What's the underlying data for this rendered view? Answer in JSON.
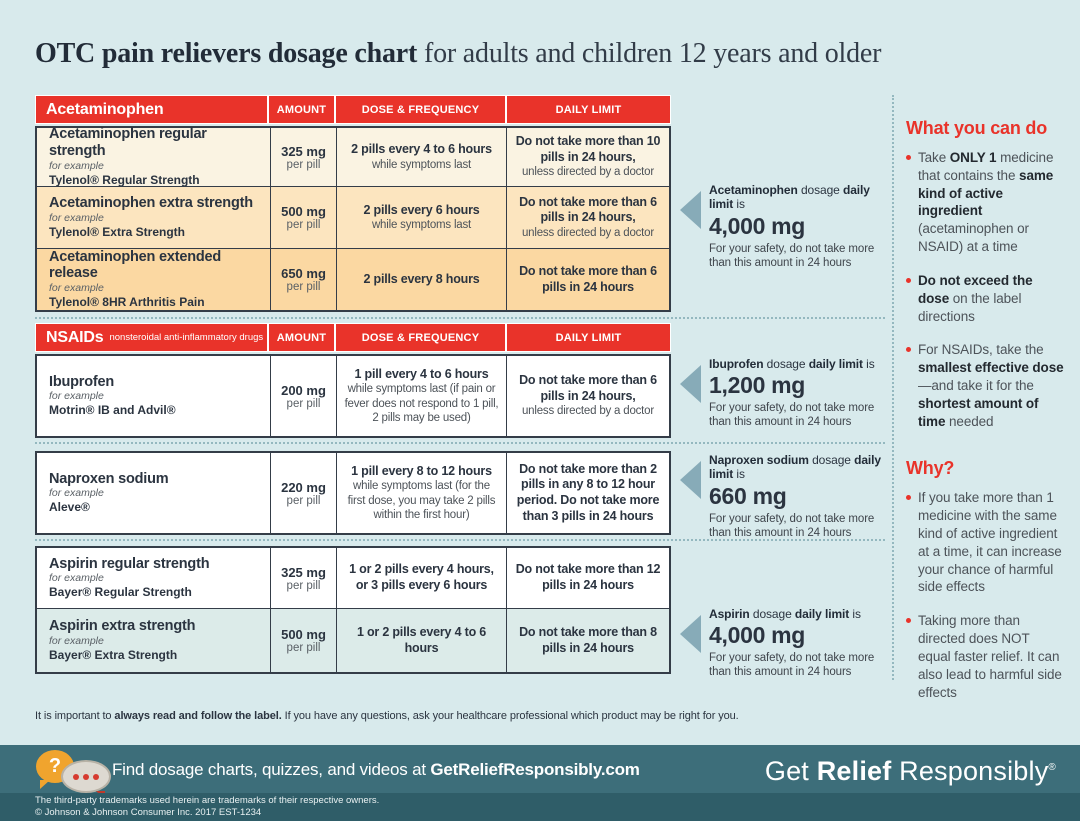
{
  "title": {
    "bold": "OTC pain relievers dosage chart",
    "rest": " for adults and children 12 years and older"
  },
  "columns": {
    "amount": "AMOUNT",
    "dose": "DOSE & FREQUENCY",
    "limit": "DAILY LIMIT"
  },
  "sections": {
    "acetaminophen": {
      "header": "Acetaminophen",
      "rows": [
        {
          "name": "Acetaminophen regular strength",
          "example_label": "for example",
          "example": "Tylenol® Regular Strength",
          "amount": "325 mg",
          "amount_unit": "per pill",
          "dose_bold": "2 pills every 4 to 6 hours",
          "dose_rest": "while symptoms last",
          "limit_bold": "Do not take more than 10 pills in 24 hours,",
          "limit_rest": "unless directed by a doctor"
        },
        {
          "name": "Acetaminophen extra strength",
          "example_label": "for example",
          "example": "Tylenol® Extra Strength",
          "amount": "500 mg",
          "amount_unit": "per pill",
          "dose_bold": "2 pills every 6 hours",
          "dose_rest": "while symptoms last",
          "limit_bold": "Do not take more than 6 pills in 24 hours,",
          "limit_rest": "unless directed by a doctor"
        },
        {
          "name": "Acetaminophen extended release",
          "example_label": "for example",
          "example": "Tylenol® 8HR Arthritis Pain",
          "amount": "650 mg",
          "amount_unit": "per pill",
          "dose_bold": "2 pills every 8 hours",
          "dose_rest": "",
          "limit_bold": "Do not take more than 6 pills in 24 hours",
          "limit_rest": ""
        }
      ]
    },
    "nsaids": {
      "header_bold": "NSAIDs",
      "header_sub": "nonsteroidal anti-inflammatory drugs",
      "rows": [
        {
          "name": "Ibuprofen",
          "example_label": "for example",
          "example": "Motrin® IB and Advil®",
          "amount": "200 mg",
          "amount_unit": "per pill",
          "dose_bold": "1 pill every 4 to 6 hours",
          "dose_rest": "while symptoms last (if pain or fever does not respond to 1 pill, 2 pills may be used)",
          "limit_bold": "Do not take more than 6 pills in 24 hours,",
          "limit_rest": "unless directed by a doctor"
        }
      ]
    },
    "naproxen": {
      "rows": [
        {
          "name": "Naproxen sodium",
          "example_label": "for example",
          "example": "Aleve®",
          "amount": "220 mg",
          "amount_unit": "per pill",
          "dose_bold": "1 pill every 8 to 12 hours",
          "dose_rest": "while symptoms last (for the first dose, you may take 2 pills within the first hour)",
          "limit_bold": "Do not take more than 2 pills in any 8 to 12 hour period. Do not take more than 3 pills in 24 hours",
          "limit_rest": ""
        }
      ]
    },
    "aspirin": {
      "rows": [
        {
          "name": "Aspirin regular strength",
          "example_label": "for example",
          "example": "Bayer® Regular Strength",
          "amount": "325 mg",
          "amount_unit": "per pill",
          "dose_bold": "1 or 2 pills every 4 hours, or 3 pills every 6 hours",
          "dose_rest": "",
          "limit_bold": "Do not take more than 12 pills in 24 hours",
          "limit_rest": ""
        },
        {
          "name": "Aspirin extra strength",
          "example_label": "for example",
          "example": "Bayer® Extra Strength",
          "amount": "500 mg",
          "amount_unit": "per pill",
          "dose_bold": "1 or 2 pills every 4 to 6 hours",
          "dose_rest": "",
          "limit_bold": "Do not take more than 8 pills in 24 hours",
          "limit_rest": ""
        }
      ]
    }
  },
  "callouts": [
    {
      "title": [
        {
          "t": "Acetaminophen",
          "b": true
        },
        {
          "t": " dosage ",
          "b": false
        },
        {
          "t": "daily limit",
          "b": true
        },
        {
          "t": " is",
          "b": false
        }
      ],
      "amount": "4,000 mg",
      "note": "For your safety, do not take more than this amount in 24 hours"
    },
    {
      "title": [
        {
          "t": "Ibuprofen",
          "b": true
        },
        {
          "t": " dosage ",
          "b": false
        },
        {
          "t": "daily limit",
          "b": true
        },
        {
          "t": " is",
          "b": false
        }
      ],
      "amount": "1,200 mg",
      "note": "For your safety, do not take more than this amount in 24 hours"
    },
    {
      "title": [
        {
          "t": "Naproxen sodium",
          "b": true
        },
        {
          "t": " dosage ",
          "b": false
        },
        {
          "t": "daily limit",
          "b": true
        },
        {
          "t": " is",
          "b": false
        }
      ],
      "amount": "660 mg",
      "note": "For your safety, do not take more than this amount in 24 hours"
    },
    {
      "title": [
        {
          "t": "Aspirin",
          "b": true
        },
        {
          "t": " dosage ",
          "b": false
        },
        {
          "t": "daily limit",
          "b": true
        },
        {
          "t": " is",
          "b": false
        }
      ],
      "amount": "4,000 mg",
      "note": "For your safety, do not take more than this amount in 24 hours"
    }
  ],
  "sidebar": {
    "do_heading": "What you can do",
    "do_bullets": [
      [
        {
          "t": "Take ",
          "b": false
        },
        {
          "t": "ONLY 1",
          "b": true
        },
        {
          "t": " medicine that contains the ",
          "b": false
        },
        {
          "t": "same kind of active ingredient",
          "b": true
        },
        {
          "t": " (acetaminophen or NSAID) at a time",
          "b": false
        }
      ],
      [
        {
          "t": "Do not exceed the dose",
          "b": true
        },
        {
          "t": " on the label directions",
          "b": false
        }
      ],
      [
        {
          "t": "For NSAIDs, take the ",
          "b": false
        },
        {
          "t": "smallest effective dose",
          "b": true
        },
        {
          "t": "—and take it for the ",
          "b": false
        },
        {
          "t": "shortest amount of time",
          "b": true
        },
        {
          "t": " needed",
          "b": false
        }
      ]
    ],
    "why_heading": "Why?",
    "why_bullets": [
      [
        {
          "t": "If you take more than 1 medicine with the same kind of active ingredient at a time, it can increase your chance of harmful side effects",
          "b": false
        }
      ],
      [
        {
          "t": "Taking more than directed does NOT equal faster relief. It can also lead to harmful side effects",
          "b": false
        }
      ]
    ]
  },
  "footnote": [
    {
      "t": "It is important to ",
      "b": false
    },
    {
      "t": "always read and follow the label.",
      "b": true
    },
    {
      "t": " If you have any questions, ask your healthcare professional which product may be right for you.",
      "b": false
    }
  ],
  "footer": {
    "find": [
      {
        "t": "Find dosage charts, quizzes, and videos at ",
        "b": false
      },
      {
        "t": "GetReliefResponsibly.com",
        "b": true
      }
    ],
    "logo": [
      {
        "t": "Get ",
        "b": false
      },
      {
        "t": "Relief",
        "b": true
      },
      {
        "t": " Responsibly",
        "b": false
      }
    ],
    "logo_reg": "®",
    "question_mark": "?",
    "fine1": "The third-party trademarks used herein are trademarks of their respective owners.",
    "fine2": "© Johnson & Johnson Consumer Inc. 2017   EST-1234"
  },
  "colors": {
    "red": "#e9332a",
    "teal": "#3d6e7a",
    "teal_dark": "#2f5d68",
    "arrow": "#87abb8",
    "cream_row": "#faf3e2",
    "peach_row": "#fce5bf",
    "peach_dark_row": "#fbd8a2",
    "blue_row": "#dcebe9",
    "background": "#d8eaec"
  }
}
